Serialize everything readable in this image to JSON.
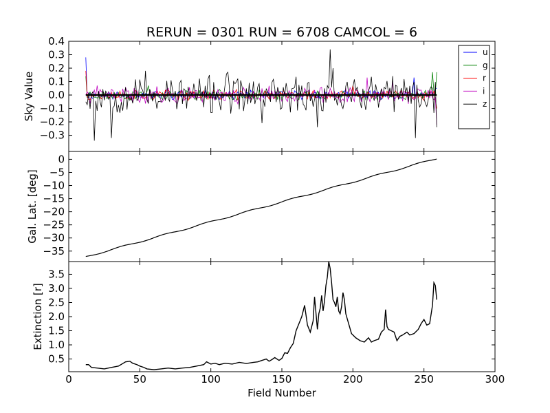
{
  "chart_data": {
    "type": "line",
    "title": "RERUN = 0301 RUN = 6708 CAMCOL = 6",
    "xlabel": "Field Number",
    "xlim": [
      0,
      300
    ],
    "x_ticks": [
      "0",
      "50",
      "100",
      "150",
      "200",
      "250",
      "300"
    ],
    "grid": false,
    "panels": [
      {
        "id": "sky",
        "ylabel": "Sky Value",
        "ylim": [
          -0.42,
          0.4
        ],
        "y_ticks": [
          "0.4",
          "0.3",
          "0.2",
          "0.1",
          "0.0",
          "−0.1",
          "−0.2",
          "−0.3"
        ],
        "y_tick_values": [
          0.4,
          0.3,
          0.2,
          0.1,
          0.0,
          -0.1,
          -0.2,
          -0.3
        ],
        "legend_placement": "top-right",
        "x_start": 12,
        "x_end": 259,
        "series": [
          {
            "name": "u",
            "color": "#0000ff",
            "noise": 0.025,
            "seed": 11,
            "values_endpoints": {
              "first": 0.28,
              "last": 0.05
            },
            "spikes": [
              [
                12,
                0.28
              ],
              [
                243,
                0.13
              ],
              [
                258,
                0.05
              ]
            ]
          },
          {
            "name": "g",
            "color": "#008000",
            "noise": 0.03,
            "seed": 23,
            "values_endpoints": {
              "first": 0.14,
              "last": 0.17
            },
            "spikes": [
              [
                12,
                0.14
              ],
              [
                56,
                0.07
              ],
              [
                256,
                0.17
              ]
            ]
          },
          {
            "name": "r",
            "color": "#ff0000",
            "noise": 0.03,
            "seed": 37,
            "values_endpoints": {
              "first": 0.18,
              "last": -0.1
            },
            "spikes": [
              [
                12,
                0.18
              ],
              [
                200,
                0.07
              ],
              [
                259,
                -0.1
              ]
            ]
          },
          {
            "name": "i",
            "color": "#bf00bf",
            "noise": 0.05,
            "seed": 41,
            "values_endpoints": {
              "first": 0.0,
              "last": -0.22
            },
            "spikes": [
              [
                210,
                0.13
              ],
              [
                228,
                0.1
              ],
              [
                259,
                -0.22
              ]
            ]
          },
          {
            "name": "z",
            "color": "#000000",
            "noise": 0.11,
            "seed": 53,
            "values_endpoints": {
              "first": -0.05,
              "last": -0.24
            },
            "spikes": [
              [
                18,
                -0.34
              ],
              [
                30,
                -0.32
              ],
              [
                54,
                0.18
              ],
              [
                112,
                0.17
              ],
              [
                136,
                -0.21
              ],
              [
                175,
                -0.24
              ],
              [
                184,
                0.34
              ],
              [
                186,
                0.2
              ],
              [
                244,
                -0.32
              ],
              [
                259,
                -0.24
              ]
            ]
          }
        ],
        "reference_line": {
          "y": 0.0,
          "x": [
            12,
            259
          ]
        }
      },
      {
        "id": "gallat",
        "ylabel": "Gal. Lat. [deg]",
        "ylim": [
          -39,
          3
        ],
        "y_ticks": [
          "0",
          "−5",
          "−10",
          "−15",
          "−20",
          "−25",
          "−30",
          "−35"
        ],
        "y_tick_values": [
          0,
          -5,
          -10,
          -15,
          -20,
          -25,
          -30,
          -35
        ],
        "series": [
          {
            "x": [
              12,
              259
            ],
            "values": [
              -37.2,
              0.3
            ]
          }
        ]
      },
      {
        "id": "ext",
        "ylabel": "Extinction [r]",
        "ylim": [
          0.05,
          3.95
        ],
        "y_ticks": [
          "3.5",
          "3.0",
          "2.5",
          "2.0",
          "1.5",
          "1.0",
          "0.5"
        ],
        "y_tick_values": [
          3.5,
          3.0,
          2.5,
          2.0,
          1.5,
          1.0,
          0.5
        ],
        "series": [
          {
            "x": [
              12,
              14,
              16,
              20,
              25,
              30,
              35,
              40,
              43,
              45,
              48,
              50,
              53,
              55,
              60,
              65,
              70,
              75,
              80,
              85,
              90,
              95,
              97,
              100,
              103,
              106,
              110,
              115,
              120,
              125,
              130,
              133,
              136,
              139,
              141,
              143,
              145,
              148,
              150,
              152,
              154,
              156,
              158,
              160,
              162,
              164,
              166,
              168,
              170,
              172,
              173,
              175,
              176,
              177,
              178,
              179,
              180,
              181,
              182,
              183,
              184,
              185,
              186,
              187,
              188,
              189,
              190,
              191,
              192,
              193,
              194,
              195,
              197,
              199,
              202,
              205,
              208,
              211,
              213,
              215,
              218,
              220,
              222,
              223,
              224,
              225,
              227,
              229,
              231,
              233,
              235,
              238,
              240,
              243,
              246,
              248,
              250,
              252,
              254,
              256,
              257,
              258,
              259
            ],
            "values": [
              0.3,
              0.3,
              0.2,
              0.18,
              0.15,
              0.2,
              0.25,
              0.4,
              0.42,
              0.35,
              0.3,
              0.25,
              0.2,
              0.15,
              0.12,
              0.15,
              0.18,
              0.15,
              0.18,
              0.2,
              0.25,
              0.3,
              0.4,
              0.32,
              0.35,
              0.3,
              0.35,
              0.32,
              0.38,
              0.34,
              0.38,
              0.4,
              0.45,
              0.5,
              0.42,
              0.48,
              0.55,
              0.45,
              0.52,
              0.72,
              0.7,
              0.9,
              1.05,
              1.5,
              1.75,
              2.0,
              2.4,
              1.7,
              1.45,
              1.85,
              2.7,
              1.55,
              2.1,
              2.3,
              2.75,
              2.2,
              2.55,
              3.1,
              3.4,
              3.95,
              3.7,
              3.2,
              2.6,
              2.5,
              2.35,
              2.7,
              2.2,
              2.1,
              2.35,
              2.85,
              2.6,
              2.1,
              1.75,
              1.4,
              1.25,
              1.15,
              1.1,
              1.25,
              1.1,
              1.15,
              1.2,
              1.45,
              1.55,
              2.25,
              1.65,
              1.55,
              1.5,
              1.45,
              1.15,
              1.3,
              1.35,
              1.45,
              1.35,
              1.4,
              1.55,
              1.75,
              1.9,
              1.7,
              1.75,
              2.4,
              3.2,
              3.1,
              2.6
            ]
          }
        ]
      }
    ]
  }
}
